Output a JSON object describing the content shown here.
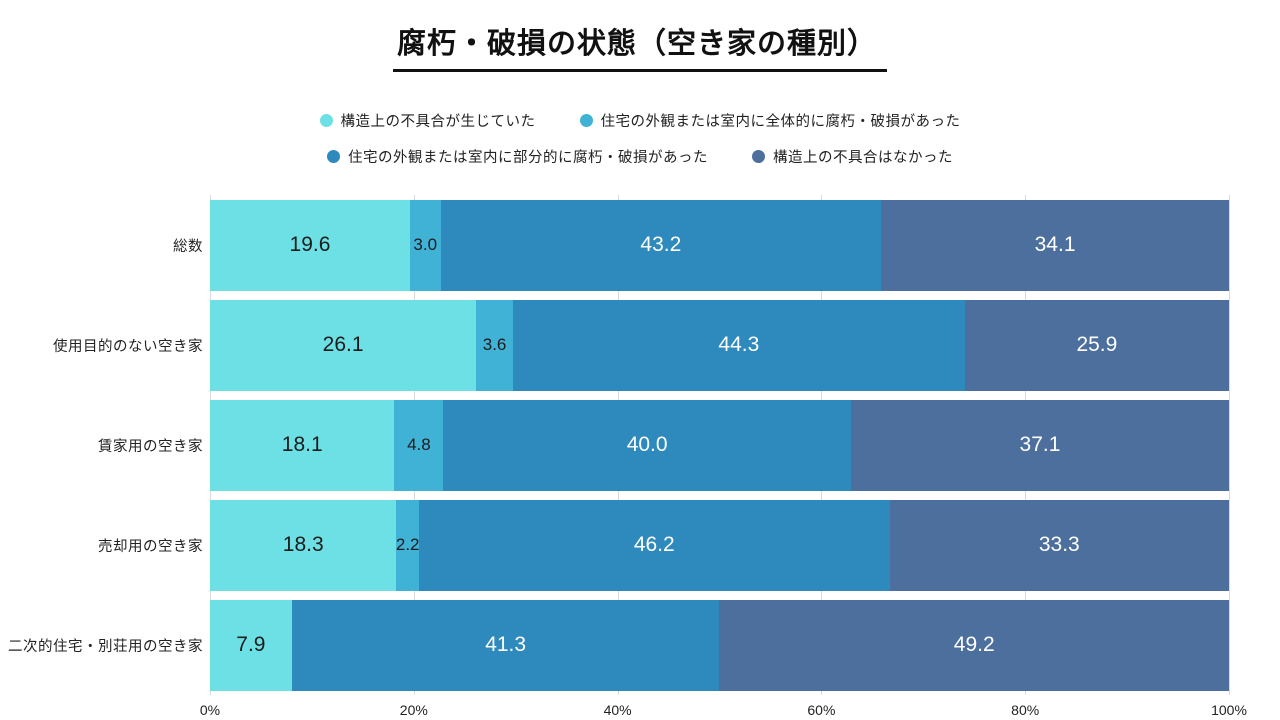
{
  "title": "腐朽・破損の状態（空き家の種別）",
  "legend_rows": [
    [
      {
        "label": "構造上の不具合が生じていた",
        "color": "#6ce0e4"
      },
      {
        "label": "住宅の外観または室内に全体的に腐朽・破損があった",
        "color": "#3fb2d6"
      }
    ],
    [
      {
        "label": "住宅の外観または室内に部分的に腐朽・破損があった",
        "color": "#2e8abd"
      },
      {
        "label": "構造上の不具合はなかった",
        "color": "#4d6f9e"
      }
    ]
  ],
  "chart_data": {
    "type": "bar",
    "orientation": "horizontal",
    "stacked": true,
    "title": "腐朽・破損の状態（空き家の種別）",
    "categories": [
      "総数",
      "使用目的のない空き家",
      "賃家用の空き家",
      "売却用の空き家",
      "二次的住宅・別荘用の空き家"
    ],
    "series": [
      {
        "name": "構造上の不具合が生じていた",
        "color": "#6ce0e4",
        "text_color": "dark",
        "values": [
          19.6,
          26.1,
          18.1,
          18.3,
          7.9
        ]
      },
      {
        "name": "住宅の外観または室内に全体的に腐朽・破損があった",
        "color": "#3fb2d6",
        "text_color": "dark",
        "values": [
          3.0,
          3.6,
          4.8,
          2.2,
          null
        ]
      },
      {
        "name": "住宅の外観または室内に部分的に腐朽・破損があった",
        "color": "#2e8abd",
        "text_color": "light",
        "values": [
          43.2,
          44.3,
          40.0,
          46.2,
          41.3
        ]
      },
      {
        "name": "構造上の不具合はなかった",
        "color": "#4d6f9e",
        "text_color": "light",
        "values": [
          34.1,
          25.9,
          37.1,
          33.3,
          49.2
        ]
      }
    ],
    "x_ticks": [
      "0%",
      "20%",
      "40%",
      "60%",
      "80%",
      "100%"
    ],
    "xlim": [
      0,
      100
    ],
    "grid": "vertical",
    "legend_position": "top"
  }
}
